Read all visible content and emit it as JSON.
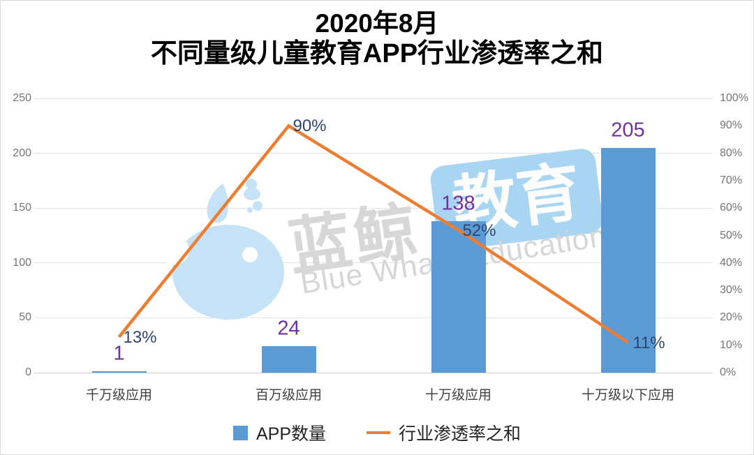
{
  "title": {
    "line1": "2020年8月",
    "line2": "不同量级儿童教育APP行业渗透率之和"
  },
  "chart_data": {
    "type": "combo",
    "title": "2020年8月 不同量级儿童教育APP行业渗透率之和",
    "categories": [
      "千万级应用",
      "百万级应用",
      "十万级应用",
      "十万级以下应用"
    ],
    "series": [
      {
        "name": "APP数量",
        "chart_type": "bar",
        "axis": "left",
        "color": "#5B9BD5",
        "values": [
          1,
          24,
          138,
          205
        ],
        "data_labels": [
          "1",
          "24",
          "138",
          "205"
        ],
        "data_label_color": "#7030A0"
      },
      {
        "name": "行业渗透率之和",
        "chart_type": "line",
        "axis": "right",
        "color": "#ED7D31",
        "values": [
          13,
          90,
          52,
          11
        ],
        "data_labels": [
          "13%",
          "90%",
          "52%",
          "11%"
        ],
        "data_label_color": "#2E456E"
      }
    ],
    "left_axis": {
      "min": 0,
      "max": 250,
      "tick_values": [
        250,
        200,
        150,
        100,
        50,
        0
      ],
      "tick_labels": [
        "250",
        "200",
        "150",
        "100",
        "50",
        "0"
      ]
    },
    "right_axis": {
      "min": 0,
      "max": 100,
      "tick_values": [
        100,
        90,
        80,
        70,
        60,
        50,
        40,
        30,
        20,
        10,
        0
      ],
      "tick_labels": [
        "100%",
        "90%",
        "80%",
        "70%",
        "60%",
        "50%",
        "40%",
        "30%",
        "20%",
        "10%",
        "0%"
      ]
    },
    "grid": true,
    "legend_position": "bottom"
  },
  "legend": {
    "items": [
      {
        "label": "APP数量",
        "marker": "square",
        "color": "#5B9BD5"
      },
      {
        "label": "行业渗透率之和",
        "marker": "line",
        "color": "#ED7D31"
      }
    ]
  },
  "watermark": {
    "cn_primary": "蓝鲸",
    "cn_badge": "教育",
    "en": "Blue Whale Education"
  },
  "colors": {
    "bar": "#5B9BD5",
    "line": "#ED7D31",
    "bar_label": "#7030A0",
    "line_label": "#2E456E",
    "tick_text": "#747474",
    "gridline": "#E4E4E4",
    "axis_line": "#CFCFCF",
    "category_text": "#3F3F3F",
    "frame_border": "#D9D9D9",
    "watermark_whale": "#C5E2F7",
    "watermark_badge": "#A8D5F2",
    "watermark_grey": "#D6D6D6"
  }
}
